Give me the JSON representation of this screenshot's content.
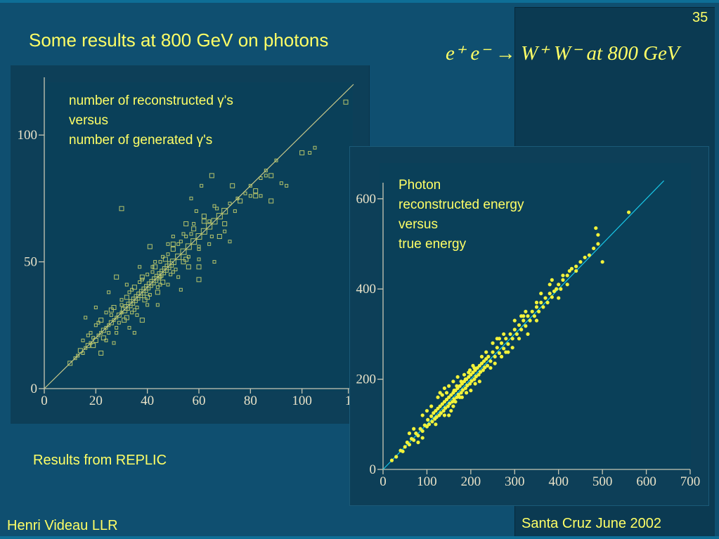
{
  "slide": {
    "number": "35",
    "title": "Some results at 800 GeV on photons",
    "formula": "e⁺ e⁻ → W⁺ W⁻     at 800 GeV",
    "results_note": "Results from REPLIC",
    "author": "Henri Videau  LLR",
    "venue": "Santa Cruz June 2002"
  },
  "colors": {
    "background": "#0f4f70",
    "text": "#ffff66",
    "scatter_left": "#b7c56b",
    "scatter_right": "#f2f23a",
    "fit_line_right": "#19c6e6"
  },
  "chart_data": [
    {
      "type": "scatter",
      "title": "",
      "annotation": [
        "number of reconstructed γ's",
        "versus",
        "number of generated γ's"
      ],
      "xlabel": "",
      "ylabel": "",
      "xlim": [
        0,
        120
      ],
      "ylim": [
        0,
        120
      ],
      "x_ticks": [
        "0",
        "20",
        "40",
        "60",
        "80",
        "100",
        "1"
      ],
      "y_ticks": [
        "0",
        "50",
        "100"
      ],
      "reference_line": {
        "from": [
          0,
          0
        ],
        "to": [
          120,
          120
        ]
      },
      "points": [
        [
          10,
          10
        ],
        [
          12,
          12
        ],
        [
          13,
          13
        ],
        [
          14,
          15
        ],
        [
          15,
          14
        ],
        [
          16,
          16
        ],
        [
          17,
          17
        ],
        [
          18,
          18
        ],
        [
          19,
          20
        ],
        [
          20,
          19
        ],
        [
          21,
          21
        ],
        [
          22,
          22
        ],
        [
          23,
          23
        ],
        [
          24,
          24
        ],
        [
          25,
          25
        ],
        [
          26,
          26
        ],
        [
          27,
          27
        ],
        [
          28,
          28
        ],
        [
          29,
          29
        ],
        [
          30,
          30
        ],
        [
          31,
          31
        ],
        [
          32,
          32
        ],
        [
          33,
          33
        ],
        [
          34,
          34
        ],
        [
          35,
          35
        ],
        [
          36,
          36
        ],
        [
          37,
          37
        ],
        [
          38,
          38
        ],
        [
          39,
          39
        ],
        [
          40,
          40
        ],
        [
          41,
          41
        ],
        [
          42,
          42
        ],
        [
          43,
          43
        ],
        [
          44,
          44
        ],
        [
          45,
          45
        ],
        [
          46,
          46
        ],
        [
          47,
          47
        ],
        [
          48,
          48
        ],
        [
          49,
          49
        ],
        [
          50,
          50
        ],
        [
          52,
          52
        ],
        [
          54,
          54
        ],
        [
          56,
          56
        ],
        [
          58,
          58
        ],
        [
          60,
          60
        ],
        [
          62,
          62
        ],
        [
          64,
          64
        ],
        [
          66,
          66
        ],
        [
          68,
          68
        ],
        [
          70,
          70
        ],
        [
          20,
          25
        ],
        [
          22,
          27
        ],
        [
          24,
          30
        ],
        [
          25,
          22
        ],
        [
          27,
          32
        ],
        [
          28,
          24
        ],
        [
          30,
          35
        ],
        [
          31,
          27
        ],
        [
          33,
          38
        ],
        [
          34,
          30
        ],
        [
          35,
          40
        ],
        [
          36,
          32
        ],
        [
          38,
          43
        ],
        [
          39,
          35
        ],
        [
          40,
          45
        ],
        [
          41,
          37
        ],
        [
          43,
          48
        ],
        [
          44,
          40
        ],
        [
          45,
          50
        ],
        [
          46,
          42
        ],
        [
          48,
          53
        ],
        [
          49,
          45
        ],
        [
          50,
          55
        ],
        [
          51,
          47
        ],
        [
          53,
          58
        ],
        [
          54,
          50
        ],
        [
          55,
          60
        ],
        [
          56,
          52
        ],
        [
          58,
          63
        ],
        [
          60,
          56
        ],
        [
          18,
          22
        ],
        [
          23,
          20
        ],
        [
          26,
          29
        ],
        [
          29,
          26
        ],
        [
          32,
          36
        ],
        [
          35,
          31
        ],
        [
          37,
          42
        ],
        [
          40,
          36
        ],
        [
          42,
          46
        ],
        [
          45,
          41
        ],
        [
          47,
          51
        ],
        [
          50,
          46
        ],
        [
          52,
          57
        ],
        [
          55,
          51
        ],
        [
          57,
          61
        ],
        [
          60,
          55
        ],
        [
          62,
          66
        ],
        [
          65,
          60
        ],
        [
          67,
          71
        ],
        [
          70,
          65
        ],
        [
          15,
          19
        ],
        [
          17,
          21
        ],
        [
          19,
          17
        ],
        [
          21,
          26
        ],
        [
          24,
          19
        ],
        [
          26,
          31
        ],
        [
          28,
          22
        ],
        [
          30,
          33
        ],
        [
          32,
          28
        ],
        [
          34,
          39
        ],
        [
          36,
          29
        ],
        [
          38,
          44
        ],
        [
          40,
          33
        ],
        [
          42,
          48
        ],
        [
          44,
          38
        ],
        [
          46,
          52
        ],
        [
          48,
          41
        ],
        [
          50,
          57
        ],
        [
          52,
          44
        ],
        [
          54,
          61
        ],
        [
          56,
          48
        ],
        [
          58,
          65
        ],
        [
          60,
          51
        ],
        [
          62,
          68
        ],
        [
          64,
          57
        ],
        [
          66,
          72
        ],
        [
          68,
          60
        ],
        [
          72,
          73
        ],
        [
          74,
          70
        ],
        [
          76,
          74
        ],
        [
          78,
          77
        ],
        [
          80,
          80
        ],
        [
          82,
          78
        ],
        [
          84,
          83
        ],
        [
          86,
          86
        ],
        [
          88,
          84
        ],
        [
          90,
          90
        ],
        [
          35,
          22
        ],
        [
          30,
          71
        ],
        [
          43,
          50
        ],
        [
          50,
          60
        ],
        [
          60,
          48
        ],
        [
          57,
          75
        ],
        [
          61,
          80
        ],
        [
          65,
          84
        ],
        [
          59,
          70
        ],
        [
          70,
          62
        ],
        [
          73,
          80
        ],
        [
          75,
          75
        ],
        [
          80,
          76
        ],
        [
          82,
          76
        ],
        [
          84,
          76
        ],
        [
          86,
          84
        ],
        [
          88,
          74
        ],
        [
          92,
          81
        ],
        [
          94,
          80
        ],
        [
          100,
          93
        ],
        [
          103,
          93
        ],
        [
          105,
          95
        ],
        [
          117,
          113
        ],
        [
          20,
          32
        ],
        [
          25,
          38
        ],
        [
          28,
          44
        ],
        [
          32,
          41
        ],
        [
          37,
          48
        ],
        [
          41,
          56
        ],
        [
          45,
          44
        ],
        [
          48,
          57
        ],
        [
          55,
          65
        ],
        [
          64,
          66
        ],
        [
          16,
          28
        ],
        [
          22,
          14
        ],
        [
          27,
          18
        ],
        [
          33,
          24
        ],
        [
          38,
          27
        ],
        [
          44,
          33
        ],
        [
          53,
          39
        ],
        [
          60,
          43
        ],
        [
          66,
          50
        ],
        [
          72,
          58
        ]
      ]
    },
    {
      "type": "scatter",
      "title": "",
      "annotation": [
        "Photon",
        "reconstructed energy",
        "versus",
        "true energy"
      ],
      "xlabel": "",
      "ylabel": "",
      "xlim": [
        0,
        700
      ],
      "ylim": [
        0,
        620
      ],
      "x_ticks": [
        "0",
        "100",
        "200",
        "300",
        "400",
        "500",
        "600",
        "700"
      ],
      "y_ticks": [
        "0",
        "200",
        "400",
        "600"
      ],
      "reference_line": {
        "from": [
          0,
          0
        ],
        "to": [
          640,
          640
        ]
      },
      "points": [
        [
          20,
          20
        ],
        [
          30,
          28
        ],
        [
          40,
          42
        ],
        [
          45,
          40
        ],
        [
          50,
          50
        ],
        [
          55,
          60
        ],
        [
          60,
          55
        ],
        [
          65,
          68
        ],
        [
          70,
          65
        ],
        [
          75,
          80
        ],
        [
          80,
          75
        ],
        [
          85,
          90
        ],
        [
          90,
          85
        ],
        [
          95,
          98
        ],
        [
          100,
          95
        ],
        [
          102,
          110
        ],
        [
          105,
          100
        ],
        [
          110,
          118
        ],
        [
          112,
          106
        ],
        [
          115,
          125
        ],
        [
          118,
          112
        ],
        [
          120,
          130
        ],
        [
          122,
          116
        ],
        [
          125,
          135
        ],
        [
          128,
          120
        ],
        [
          130,
          140
        ],
        [
          132,
          125
        ],
        [
          135,
          145
        ],
        [
          138,
          130
        ],
        [
          140,
          150
        ],
        [
          142,
          136
        ],
        [
          145,
          155
        ],
        [
          148,
          140
        ],
        [
          150,
          160
        ],
        [
          152,
          146
        ],
        [
          155,
          165
        ],
        [
          158,
          150
        ],
        [
          160,
          170
        ],
        [
          162,
          156
        ],
        [
          165,
          175
        ],
        [
          168,
          160
        ],
        [
          170,
          180
        ],
        [
          172,
          166
        ],
        [
          175,
          185
        ],
        [
          178,
          170
        ],
        [
          180,
          190
        ],
        [
          182,
          176
        ],
        [
          185,
          195
        ],
        [
          188,
          180
        ],
        [
          190,
          200
        ],
        [
          192,
          186
        ],
        [
          195,
          205
        ],
        [
          198,
          190
        ],
        [
          200,
          210
        ],
        [
          202,
          196
        ],
        [
          205,
          215
        ],
        [
          208,
          200
        ],
        [
          210,
          220
        ],
        [
          212,
          206
        ],
        [
          215,
          225
        ],
        [
          218,
          210
        ],
        [
          220,
          230
        ],
        [
          222,
          216
        ],
        [
          225,
          235
        ],
        [
          228,
          220
        ],
        [
          230,
          240
        ],
        [
          232,
          226
        ],
        [
          235,
          245
        ],
        [
          238,
          230
        ],
        [
          240,
          250
        ],
        [
          245,
          240
        ],
        [
          250,
          260
        ],
        [
          255,
          250
        ],
        [
          260,
          270
        ],
        [
          265,
          258
        ],
        [
          270,
          280
        ],
        [
          275,
          268
        ],
        [
          280,
          290
        ],
        [
          285,
          278
        ],
        [
          290,
          300
        ],
        [
          295,
          290
        ],
        [
          300,
          310
        ],
        [
          305,
          300
        ],
        [
          310,
          320
        ],
        [
          315,
          310
        ],
        [
          320,
          330
        ],
        [
          325,
          318
        ],
        [
          330,
          340
        ],
        [
          335,
          330
        ],
        [
          340,
          350
        ],
        [
          345,
          340
        ],
        [
          350,
          360
        ],
        [
          355,
          350
        ],
        [
          360,
          370
        ],
        [
          365,
          360
        ],
        [
          370,
          380
        ],
        [
          375,
          370
        ],
        [
          380,
          390
        ],
        [
          385,
          382
        ],
        [
          390,
          395
        ],
        [
          395,
          400
        ],
        [
          400,
          410
        ],
        [
          405,
          400
        ],
        [
          410,
          420
        ],
        [
          420,
          430
        ],
        [
          425,
          440
        ],
        [
          430,
          445
        ],
        [
          440,
          450
        ],
        [
          450,
          460
        ],
        [
          460,
          470
        ],
        [
          470,
          475
        ],
        [
          480,
          490
        ],
        [
          490,
          500
        ],
        [
          500,
          460
        ],
        [
          485,
          535
        ],
        [
          490,
          520
        ],
        [
          560,
          570
        ],
        [
          440,
          440
        ],
        [
          420,
          410
        ],
        [
          410,
          430
        ],
        [
          130,
          170
        ],
        [
          140,
          180
        ],
        [
          150,
          185
        ],
        [
          160,
          195
        ],
        [
          170,
          205
        ],
        [
          180,
          160
        ],
        [
          190,
          170
        ],
        [
          200,
          175
        ],
        [
          210,
          190
        ],
        [
          220,
          195
        ],
        [
          100,
          130
        ],
        [
          110,
          140
        ],
        [
          90,
          120
        ],
        [
          120,
          100
        ],
        [
          140,
          120
        ],
        [
          160,
          140
        ],
        [
          250,
          280
        ],
        [
          260,
          290
        ],
        [
          270,
          250
        ],
        [
          280,
          260
        ],
        [
          300,
          330
        ],
        [
          310,
          290
        ],
        [
          320,
          340
        ],
        [
          330,
          300
        ],
        [
          350,
          330
        ],
        [
          360,
          390
        ],
        [
          380,
          410
        ],
        [
          385,
          420
        ],
        [
          400,
          380
        ],
        [
          350,
          370
        ],
        [
          60,
          80
        ],
        [
          70,
          90
        ],
        [
          80,
          60
        ],
        [
          90,
          70
        ],
        [
          150,
          120
        ],
        [
          165,
          150
        ],
        [
          175,
          160
        ],
        [
          185,
          210
        ],
        [
          195,
          215
        ],
        [
          205,
          230
        ],
        [
          225,
          250
        ],
        [
          235,
          260
        ],
        [
          245,
          225
        ],
        [
          255,
          235
        ],
        [
          265,
          290
        ],
        [
          275,
          300
        ],
        [
          285,
          260
        ],
        [
          295,
          270
        ],
        [
          315,
          340
        ],
        [
          325,
          350
        ],
        [
          125,
          160
        ],
        [
          135,
          165
        ],
        [
          145,
          170
        ],
        [
          155,
          130
        ],
        [
          162,
          175
        ],
        [
          168,
          185
        ],
        [
          178,
          195
        ],
        [
          188,
          200
        ],
        [
          198,
          220
        ],
        [
          208,
          225
        ]
      ]
    }
  ]
}
